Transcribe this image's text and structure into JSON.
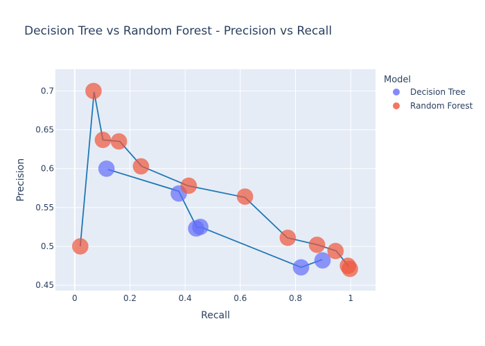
{
  "chart_data": {
    "type": "scatter",
    "title": "Decision Tree vs Random Forest - Precision vs Recall",
    "xlabel": "Recall",
    "ylabel": "Precision",
    "xlim": [
      -0.07,
      1.09
    ],
    "ylim": [
      0.443,
      0.728
    ],
    "x_ticks": [
      {
        "value": 0,
        "label": "0"
      },
      {
        "value": 0.2,
        "label": "0.2"
      },
      {
        "value": 0.4,
        "label": "0.4"
      },
      {
        "value": 0.6,
        "label": "0.6"
      },
      {
        "value": 0.8,
        "label": "0.8"
      },
      {
        "value": 1,
        "label": "1"
      }
    ],
    "y_ticks": [
      {
        "value": 0.45,
        "label": "0.45"
      },
      {
        "value": 0.5,
        "label": "0.5"
      },
      {
        "value": 0.55,
        "label": "0.55"
      },
      {
        "value": 0.6,
        "label": "0.6"
      },
      {
        "value": 0.65,
        "label": "0.65"
      },
      {
        "value": 0.7,
        "label": "0.7"
      }
    ],
    "grid": true,
    "legend_title": "Model",
    "legend_position": "right",
    "series": [
      {
        "name": "Decision Tree",
        "color": "#636efa",
        "points": [
          {
            "x": 0.115,
            "y": 0.6
          },
          {
            "x": 0.377,
            "y": 0.568
          },
          {
            "x": 0.44,
            "y": 0.523
          },
          {
            "x": 0.455,
            "y": 0.525
          },
          {
            "x": 0.82,
            "y": 0.473
          },
          {
            "x": 0.898,
            "y": 0.482
          }
        ]
      },
      {
        "name": "Random Forest",
        "color": "#ef553b",
        "points": [
          {
            "x": 0.02,
            "y": 0.5
          },
          {
            "x": 0.068,
            "y": 0.7
          },
          {
            "x": 0.102,
            "y": 0.637
          },
          {
            "x": 0.16,
            "y": 0.635
          },
          {
            "x": 0.24,
            "y": 0.603
          },
          {
            "x": 0.413,
            "y": 0.578
          },
          {
            "x": 0.617,
            "y": 0.564
          },
          {
            "x": 0.772,
            "y": 0.511
          },
          {
            "x": 0.878,
            "y": 0.502
          },
          {
            "x": 0.945,
            "y": 0.494
          },
          {
            "x": 0.99,
            "y": 0.475
          },
          {
            "x": 0.997,
            "y": 0.471
          }
        ]
      }
    ],
    "lines": [
      {
        "name": "Decision Tree curve",
        "color": "#1f77b4",
        "points": [
          {
            "x": 0.12,
            "y": 0.599
          },
          {
            "x": 0.377,
            "y": 0.571
          },
          {
            "x": 0.443,
            "y": 0.524
          },
          {
            "x": 0.455,
            "y": 0.525
          },
          {
            "x": 0.82,
            "y": 0.473
          },
          {
            "x": 0.897,
            "y": 0.483
          }
        ]
      },
      {
        "name": "Random Forest curve",
        "color": "#1f77b4",
        "points": [
          {
            "x": 0.02,
            "y": 0.5
          },
          {
            "x": 0.07,
            "y": 0.699
          },
          {
            "x": 0.102,
            "y": 0.637
          },
          {
            "x": 0.163,
            "y": 0.635
          },
          {
            "x": 0.243,
            "y": 0.603
          },
          {
            "x": 0.41,
            "y": 0.578
          },
          {
            "x": 0.617,
            "y": 0.563
          },
          {
            "x": 0.77,
            "y": 0.511
          },
          {
            "x": 0.88,
            "y": 0.502
          },
          {
            "x": 0.948,
            "y": 0.494
          },
          {
            "x": 0.993,
            "y": 0.474
          }
        ]
      }
    ]
  }
}
